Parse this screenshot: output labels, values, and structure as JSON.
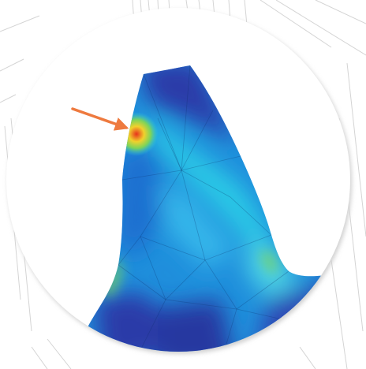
{
  "figure": {
    "subject": "gear-tooth-stress-contour",
    "colors": {
      "page_background": "#ffffff",
      "background_lines": "#d4d4d4",
      "circle_fill": "#ffffff",
      "circle_shadow": "#cfcfcf",
      "stress_low": "#2a3aa8",
      "stress_mid_low": "#1f8fdc",
      "stress_mid": "#29c9e6",
      "stress_mid_high": "#7cd45a",
      "stress_high": "#f0d22c",
      "stress_peak": "#e8331c",
      "arrow": "#ee7a3f",
      "mesh_lines": "#0b2a66"
    },
    "arrow_target": "stress-concentration-hotspot",
    "legend": []
  }
}
